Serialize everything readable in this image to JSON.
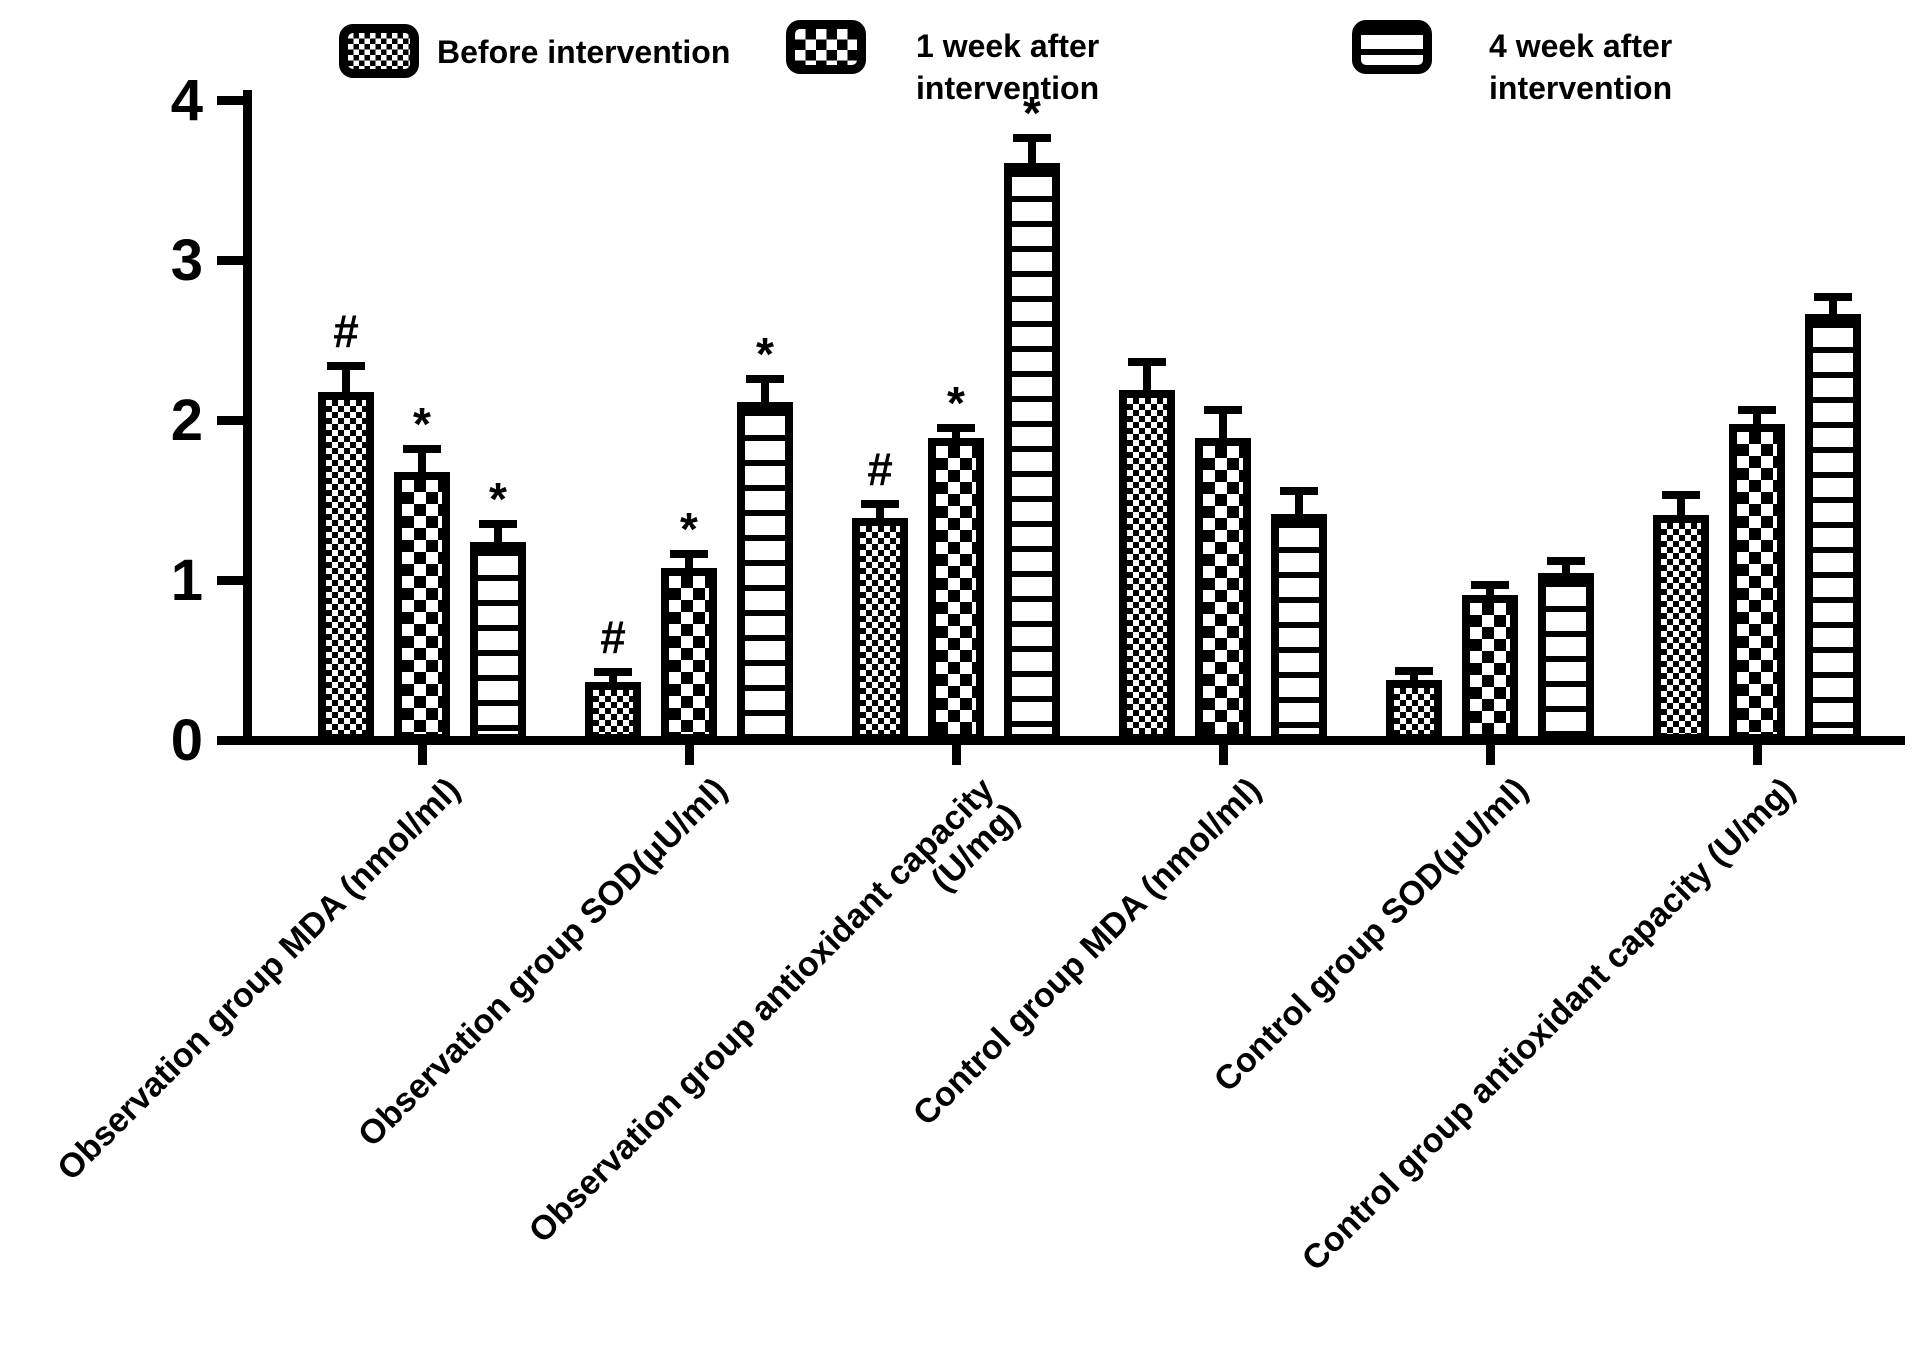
{
  "figure": {
    "background": "#ffffff",
    "ink": "#000000"
  },
  "legend": [
    {
      "label": "Before intervention",
      "pattern": "fine-checker"
    },
    {
      "label": "1 week after\nintervention",
      "pattern": "checkerboard"
    },
    {
      "label": "4 week after\nintervention",
      "pattern": "horizontal-lines"
    }
  ],
  "chart_data": {
    "type": "bar",
    "title": "",
    "xlabel": "",
    "ylabel": "",
    "ylim": [
      0,
      4
    ],
    "yticks": [
      0,
      1,
      2,
      3,
      4
    ],
    "grid": false,
    "legend_position": "top",
    "error_bars": "upper",
    "x_label_rotation_deg": -45,
    "categories": [
      "Observation group MDA (nmol/ml)",
      "Observation group SOD(μU/ml)",
      "Observation group antioxidant capacity (U/mg)",
      "Control group MDA (nmol/ml)",
      "Control group SOD(μU/ml)",
      "Control group antioxidant capacity (U/mg)"
    ],
    "series": [
      {
        "name": "Before intervention",
        "pattern": "fine-checker",
        "values": [
          2.15,
          0.34,
          1.36,
          2.16,
          0.35,
          1.38
        ],
        "errors": [
          0.14,
          0.04,
          0.06,
          0.15,
          0.03,
          0.1
        ],
        "annotations": [
          "#",
          "#",
          "#",
          "",
          "",
          ""
        ]
      },
      {
        "name": "1 week after intervention",
        "pattern": "checkerboard",
        "values": [
          1.65,
          1.05,
          1.86,
          1.86,
          0.88,
          1.95
        ],
        "errors": [
          0.12,
          0.06,
          0.04,
          0.15,
          0.04,
          0.06
        ],
        "annotations": [
          "*",
          "*",
          "*",
          "",
          "",
          ""
        ]
      },
      {
        "name": "4 week after intervention",
        "pattern": "horizontal-lines",
        "values": [
          1.21,
          2.09,
          3.58,
          1.39,
          1.02,
          2.64
        ],
        "errors": [
          0.09,
          0.12,
          0.13,
          0.12,
          0.05,
          0.08
        ],
        "annotations": [
          "*",
          "*",
          "*",
          "",
          "",
          ""
        ]
      }
    ]
  }
}
